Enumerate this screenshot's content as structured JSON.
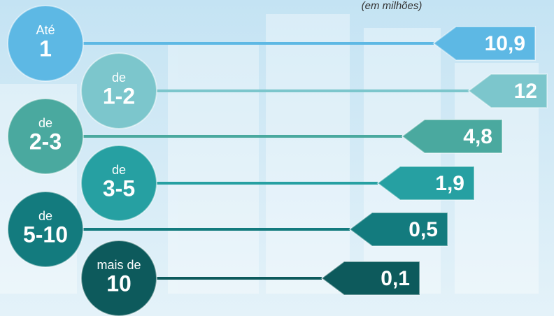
{
  "chart_data": {
    "type": "bar",
    "subtitle": "(em milhões)",
    "categories": [
      {
        "prefix": "Até",
        "range": "1"
      },
      {
        "prefix": "de",
        "range": "1-2"
      },
      {
        "prefix": "de",
        "range": "2-3"
      },
      {
        "prefix": "de",
        "range": "3-5"
      },
      {
        "prefix": "de",
        "range": "5-10"
      },
      {
        "prefix": "mais de",
        "range": "10"
      }
    ],
    "values": [
      10.9,
      12,
      4.8,
      1.9,
      0.5,
      0.1
    ],
    "value_labels": [
      "10,9",
      "12",
      "4,8",
      "1,9",
      "0,5",
      "0,1"
    ],
    "colors": [
      "#5db8e4",
      "#7cc6cc",
      "#4aa99f",
      "#26a0a2",
      "#137b7e",
      "#0d5a5c"
    ]
  }
}
